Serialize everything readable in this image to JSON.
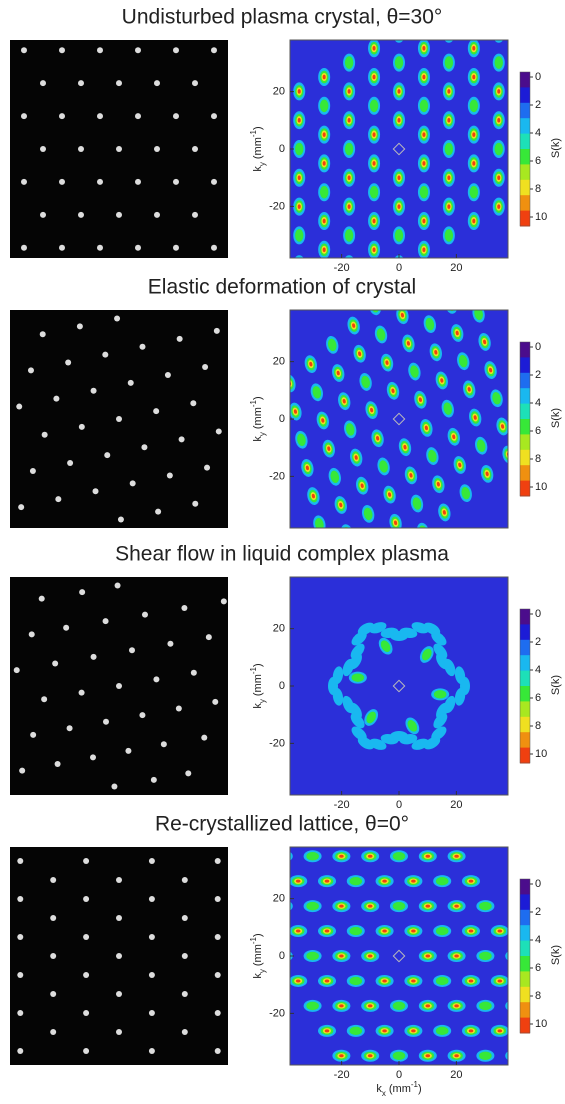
{
  "axes": {
    "x_label": [
      "k",
      "x",
      " (mm",
      "-1",
      ")"
    ],
    "y_label": [
      "k",
      "y",
      " (mm",
      "-1",
      ")"
    ],
    "xlim": [
      -38,
      38
    ],
    "ylim": [
      -38,
      38
    ],
    "xticks": [
      -20,
      0,
      20
    ],
    "yticks": [
      -20,
      0,
      20
    ],
    "colorbar_label": "S(k)",
    "colorbar_ticks": [
      0,
      2,
      4,
      6,
      8,
      10
    ]
  },
  "panels": [
    {
      "title": "Undisturbed plasma crystal, θ=30°",
      "show_xticks": true,
      "show_xlabel": false
    },
    {
      "title": "Elastic deformation of crystal",
      "show_xticks": false,
      "show_xlabel": false
    },
    {
      "title": "Shear flow in liquid complex plasma",
      "show_xticks": true,
      "show_xlabel": false
    },
    {
      "title": "Re-crystallized lattice, θ=0°",
      "show_xticks": true,
      "show_xlabel": true
    }
  ]
}
